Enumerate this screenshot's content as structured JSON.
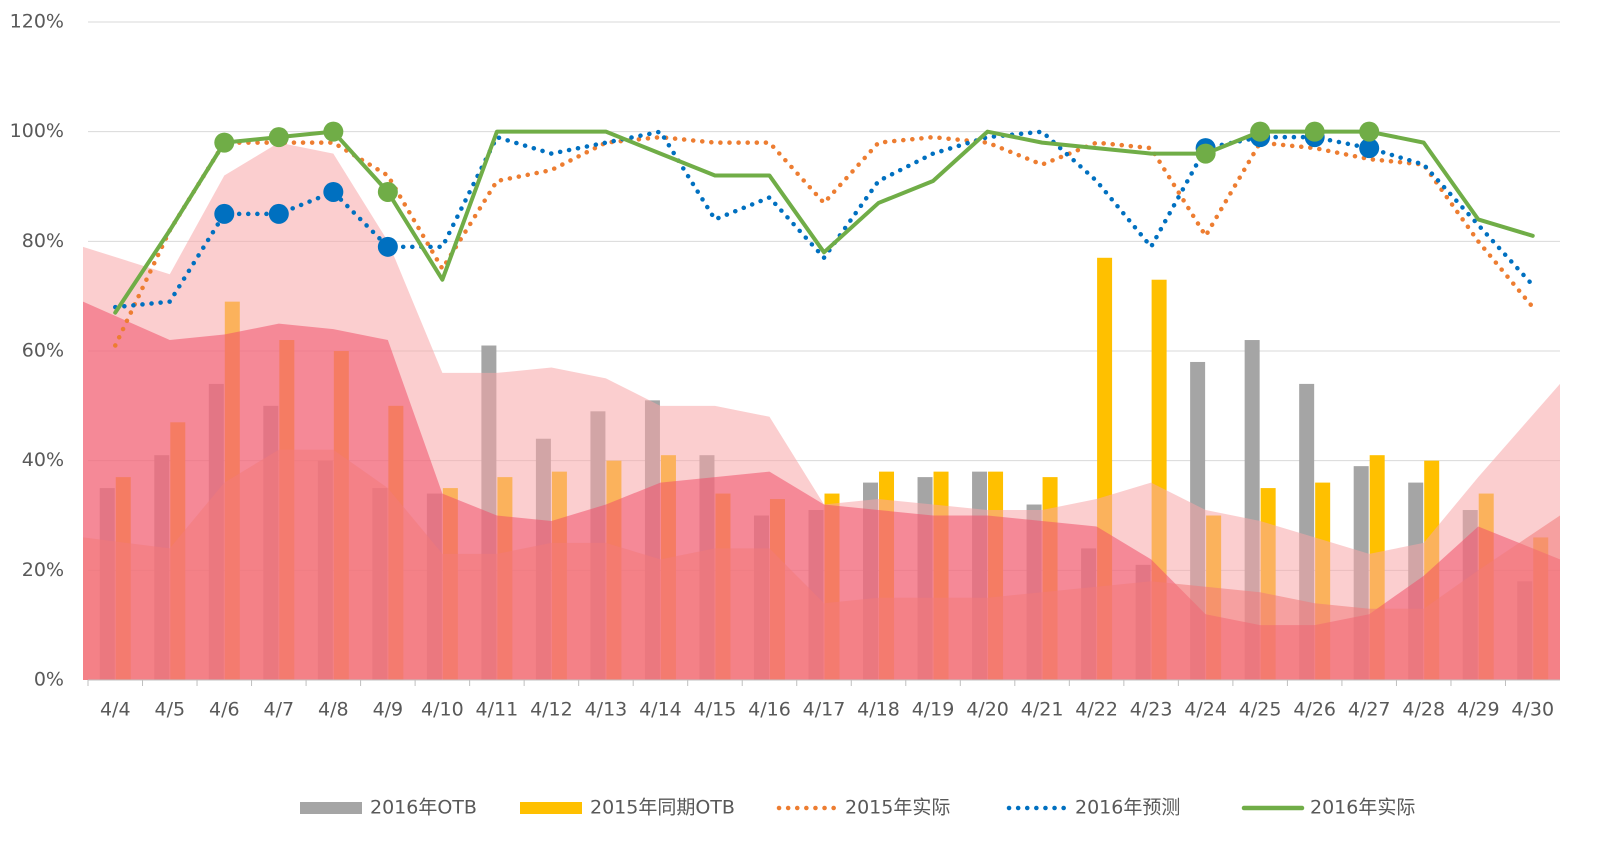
{
  "chart_data": {
    "type": "bar",
    "categories": [
      "4/4",
      "4/5",
      "4/6",
      "4/7",
      "4/8",
      "4/9",
      "4/10",
      "4/11",
      "4/12",
      "4/13",
      "4/14",
      "4/15",
      "4/16",
      "4/17",
      "4/18",
      "4/19",
      "4/20",
      "4/21",
      "4/22",
      "4/23",
      "4/24",
      "4/25",
      "4/26",
      "4/27",
      "4/28",
      "4/29",
      "4/30"
    ],
    "ylim": [
      0,
      120
    ],
    "yticks": [
      {
        "value": 0,
        "label": "0%"
      },
      {
        "value": 20,
        "label": "20%"
      },
      {
        "value": 40,
        "label": "40%"
      },
      {
        "value": 60,
        "label": "60%"
      },
      {
        "value": 80,
        "label": "80%"
      },
      {
        "value": 100,
        "label": "100%"
      },
      {
        "value": 120,
        "label": "120%"
      }
    ],
    "grid": true,
    "legend": "bottom",
    "areas": [
      {
        "color": "#f8a5a8",
        "values": [
          79,
          74,
          92,
          98,
          96,
          80,
          56,
          56,
          57,
          55,
          50,
          50,
          48,
          32,
          33,
          32,
          31,
          31,
          33,
          36,
          31,
          29,
          26,
          23,
          25,
          37,
          54
        ]
      },
      {
        "color": "#f0506a",
        "values": [
          69,
          62,
          63,
          65,
          64,
          62,
          34,
          30,
          29,
          32,
          36,
          37,
          38,
          32,
          31,
          30,
          30,
          29,
          28,
          22,
          12,
          10,
          10,
          12,
          19,
          28,
          22
        ]
      },
      {
        "color": "#f27a7a",
        "values": [
          26,
          24,
          36,
          42,
          42,
          35,
          23,
          23,
          25,
          25,
          22,
          24,
          24,
          14,
          15,
          15,
          15,
          16,
          17,
          18,
          17,
          16,
          14,
          13,
          13,
          20,
          30
        ]
      }
    ],
    "series": [
      {
        "name": "2016年OTB",
        "type": "bar",
        "color": "#a5a5a5",
        "values": [
          35,
          41,
          54,
          50,
          40,
          35,
          34,
          61,
          44,
          49,
          51,
          41,
          30,
          31,
          36,
          37,
          38,
          32,
          24,
          21,
          58,
          62,
          54,
          39,
          36,
          31,
          18
        ]
      },
      {
        "name": "2015年同期OTB",
        "type": "bar",
        "color": "#ffc000",
        "values": [
          37,
          47,
          69,
          62,
          60,
          50,
          35,
          37,
          38,
          40,
          41,
          34,
          33,
          34,
          38,
          38,
          38,
          37,
          77,
          73,
          30,
          35,
          36,
          41,
          40,
          34,
          26
        ]
      },
      {
        "name": "2015年实际",
        "type": "dotted",
        "color": "#ed7d31",
        "values": [
          61,
          82,
          98,
          98,
          98,
          92,
          75,
          91,
          93,
          98,
          99,
          98,
          98,
          87,
          98,
          99,
          98,
          94,
          98,
          97,
          81,
          98,
          97,
          95,
          94,
          80,
          68
        ]
      },
      {
        "name": "2016年预测",
        "type": "dotted",
        "color": "#0070c0",
        "markers": [
          2,
          3,
          4,
          5,
          20,
          21,
          22,
          23
        ],
        "values": [
          68,
          69,
          85,
          85,
          89,
          79,
          79,
          99,
          96,
          98,
          100,
          84,
          88,
          77,
          91,
          96,
          99,
          100,
          91,
          79,
          97,
          99,
          99,
          97,
          94,
          83,
          72
        ]
      },
      {
        "name": "2016年实际",
        "type": "line",
        "color": "#70ad47",
        "markers": [
          2,
          3,
          4,
          5,
          20,
          21,
          22,
          23
        ],
        "values": [
          67,
          82,
          98,
          99,
          100,
          89,
          73,
          100,
          100,
          100,
          96,
          92,
          92,
          78,
          87,
          91,
          100,
          98,
          97,
          96,
          96,
          100,
          100,
          100,
          98,
          84,
          81
        ]
      }
    ]
  }
}
